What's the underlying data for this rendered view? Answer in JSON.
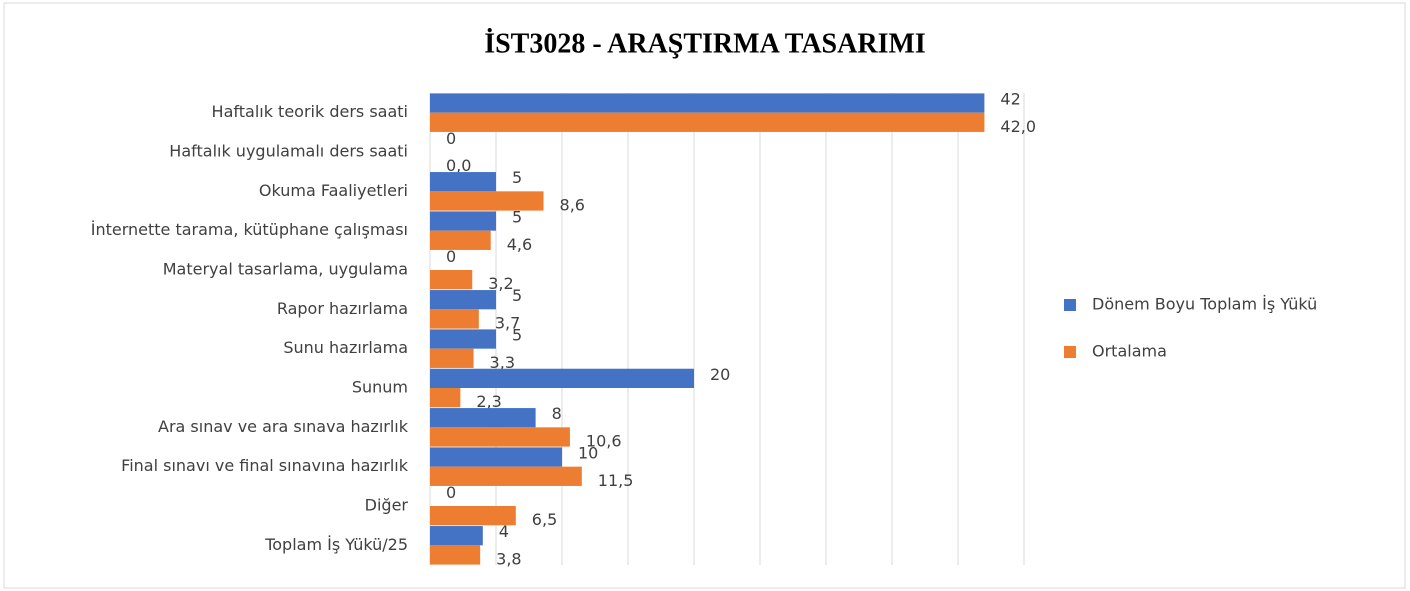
{
  "chart_data": {
    "type": "hbar",
    "title": "İST3028 - ARAŞTIRMA TASARIMI",
    "categories": [
      "Haftalık teorik ders saati",
      "Haftalık uygulamalı ders saati",
      "Okuma Faaliyetleri",
      "İnternette tarama, kütüphane çalışması",
      "Materyal tasarlama, uygulama",
      "Rapor hazırlama",
      "Sunu hazırlama",
      "Sunum",
      "Ara sınav ve ara sınava hazırlık",
      "Final sınavı ve final sınavına hazırlık",
      "Diğer",
      "Toplam İş Yükü/25"
    ],
    "series": [
      {
        "name": "Dönem Boyu Toplam İş Yükü",
        "color": "#4472c4",
        "values": [
          42,
          0,
          5,
          5,
          0,
          5,
          5,
          20,
          8,
          10,
          0,
          4
        ]
      },
      {
        "name": "Ortalama",
        "color": "#ed7d31",
        "values": [
          42.0,
          0.0,
          8.6,
          4.6,
          3.2,
          3.7,
          3.3,
          2.3,
          10.6,
          11.5,
          6.5,
          3.8
        ],
        "value_labels": [
          "42,0",
          "0,0",
          "8,6",
          "4,6",
          "3,2",
          "3,7",
          "3,3",
          "2,3",
          "10,6",
          "11,5",
          "6,5",
          "3,8"
        ]
      }
    ],
    "xlim": [
      0,
      45
    ],
    "xticks": [
      0,
      5,
      10,
      15,
      20,
      25,
      30,
      35,
      40,
      45
    ],
    "grid": true,
    "legend": "right"
  }
}
